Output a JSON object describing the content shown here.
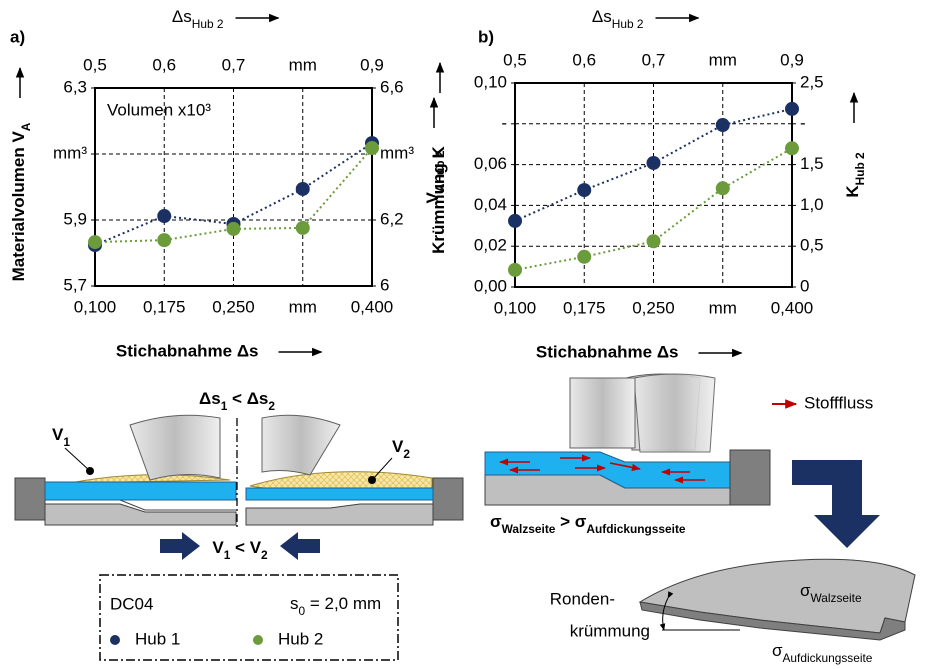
{
  "chart_data": [
    {
      "type": "line",
      "panel": "a)",
      "title_top": {
        "text": "Δs",
        "sub": "Hub 2"
      },
      "xlabel": "Stichabnahme Δs",
      "ylabel": {
        "text": "Materialvolumen V",
        "sub": "A"
      },
      "y2label": {
        "text": "V",
        "sub": "AHub 2"
      },
      "annotation": "Volumen x10³",
      "categories": [
        "0,100",
        "0,175",
        "0,250",
        "mm",
        "0,400"
      ],
      "x2_categories": [
        "0,5",
        "0,6",
        "0,7",
        "mm",
        "0,9"
      ],
      "ylim": [
        5.7,
        6.3
      ],
      "yticks": [
        {
          "value": 5.7,
          "label": "5,7"
        },
        {
          "value": 5.9,
          "label": "5,9"
        },
        {
          "value": 6.1,
          "label": "mm³"
        },
        {
          "value": 6.3,
          "label": "6,3"
        }
      ],
      "y2lim": [
        6,
        6.6
      ],
      "y2ticks": [
        6,
        {
          "value": 6.2,
          "label": "6,2"
        },
        {
          "value": 6.4,
          "label": "mm³"
        },
        {
          "value": 6.6,
          "label": "6,6"
        }
      ],
      "grid": true,
      "series": [
        {
          "name": "Hub 1",
          "color": "#1b3163",
          "values": [
            5.824,
            5.912,
            5.888,
            5.994,
            6.133
          ]
        },
        {
          "name": "Hub 2",
          "color": "#6b9b3b",
          "axis": "y2",
          "values": [
            6.133,
            6.139,
            6.173,
            6.176,
            6.418
          ]
        }
      ]
    },
    {
      "type": "line",
      "panel": "b)",
      "title_top": {
        "text": "Δs",
        "sub": "Hub 2"
      },
      "xlabel": "Stichabnahme Δs",
      "ylabel": {
        "text": "Krümmung K",
        "sub": ""
      },
      "y2label": {
        "text": "K",
        "sub": "Hub 2"
      },
      "categories": [
        "0,100",
        "0,175",
        "0,250",
        "mm",
        "0,400"
      ],
      "x2_categories": [
        "0,5",
        "0,6",
        "0,7",
        "mm",
        "0,9"
      ],
      "ylim": [
        0,
        0.1
      ],
      "yticks": [
        {
          "value": 0,
          "label": "0,00"
        },
        {
          "value": 0.02,
          "label": "0,02"
        },
        {
          "value": 0.04,
          "label": "0,04"
        },
        {
          "value": 0.06,
          "label": "0,06"
        },
        {
          "value": 0.08,
          "label": "-"
        },
        {
          "value": 0.1,
          "label": "0,10"
        }
      ],
      "y2lim": [
        0,
        2.5
      ],
      "y2ticks": [
        0,
        {
          "value": 0.5,
          "label": "0,5"
        },
        {
          "value": 1,
          "label": "1,0"
        },
        {
          "value": 1.5,
          "label": "1,5"
        },
        {
          "value": 2,
          "label": "-"
        },
        {
          "value": 2.5,
          "label": "2,5"
        }
      ],
      "grid": true,
      "series": [
        {
          "name": "Hub 1",
          "color": "#1b3163",
          "values": [
            0.0324,
            0.0475,
            0.0608,
            0.0794,
            0.0873
          ]
        },
        {
          "name": "Hub 2",
          "color": "#6b9b3b",
          "axis": "y2",
          "values": [
            0.21,
            0.37,
            0.56,
            1.21,
            1.7
          ]
        }
      ]
    }
  ],
  "diagram": {
    "delta_compare": {
      "left": "Δs",
      "left_sub": "1",
      "op": " < ",
      "right": "Δs",
      "right_sub": "2"
    },
    "v1": {
      "text": "V",
      "sub": "1"
    },
    "v2": {
      "text": "V",
      "sub": "2"
    },
    "v_compare": {
      "left": "V",
      "left_sub": "1",
      "op": " < ",
      "right": "V",
      "right_sub": "2"
    },
    "material": "DC04",
    "thickness": {
      "text": "s",
      "sub": "0",
      "rest": " = 2,0 mm"
    },
    "flow_legend": "Stofffluss",
    "stress_compare": {
      "left": "σ",
      "left_sub": "Walzseite",
      "op": " > ",
      "right": "σ",
      "right_sub": "Aufdickungsseite"
    },
    "curvature": [
      "Ronden-",
      "krümmung"
    ],
    "stress_roll": {
      "text": "σ",
      "sub": "Walzseite"
    },
    "stress_thick": {
      "text": "σ",
      "sub": "Aufdickungsseite"
    }
  }
}
